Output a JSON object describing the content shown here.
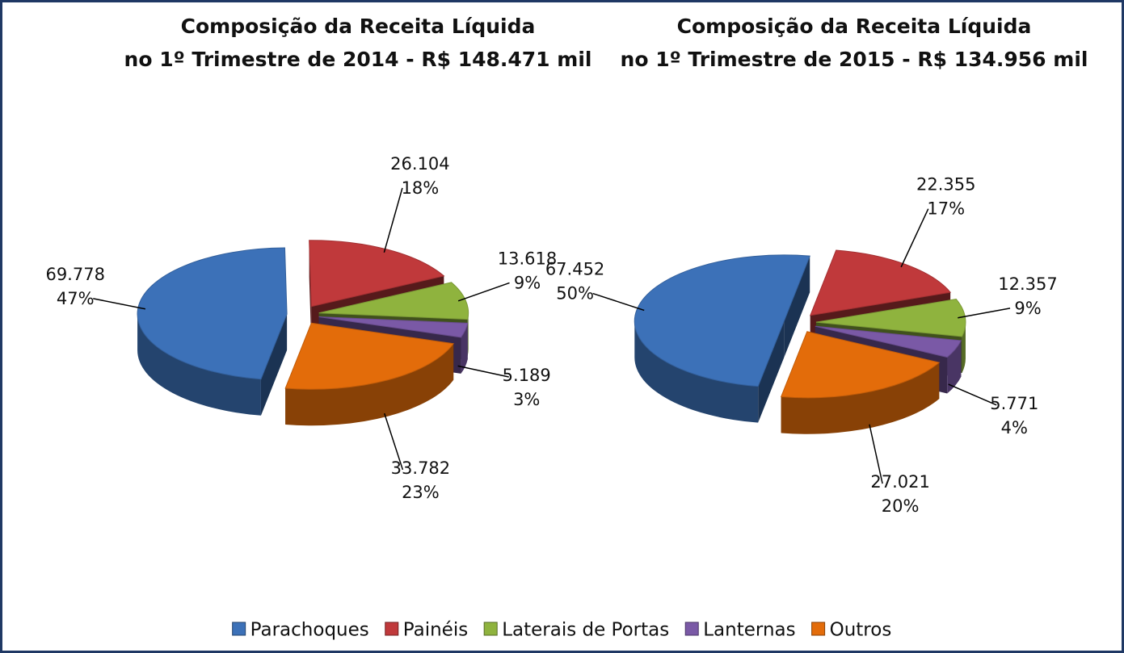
{
  "chart_data": [
    {
      "type": "pie3d",
      "title": [
        "Composição da Receita Líquida",
        "no 1º Trimestre de 2014 - R$ 148.471 mil"
      ],
      "values": [
        69778,
        26104,
        13618,
        5189,
        33782
      ],
      "value_labels": [
        "69.778",
        "26.104",
        "13.618",
        "5.189",
        "33.782"
      ],
      "percents": [
        47,
        18,
        9,
        3,
        23
      ],
      "percent_labels": [
        "47%",
        "18%",
        "9%",
        "3%",
        "23%"
      ]
    },
    {
      "type": "pie3d",
      "title": [
        "Composição da Receita Líquida",
        "no 1º Trimestre de 2015 - R$ 134.956 mil"
      ],
      "values": [
        67452,
        22355,
        12357,
        5771,
        27021
      ],
      "value_labels": [
        "67.452",
        "22.355",
        "12.357",
        "5.771",
        "27.021"
      ],
      "percents": [
        50,
        17,
        9,
        4,
        20
      ],
      "percent_labels": [
        "50%",
        "17%",
        "9%",
        "4%",
        "20%"
      ]
    }
  ],
  "legend": {
    "labels": [
      "Parachoques",
      "Painéis",
      "Laterais de Portas",
      "Lanternas",
      "Outros"
    ],
    "colors": [
      "#3c71b8",
      "#c0393b",
      "#8fb33e",
      "#7a59a6",
      "#e36c0a"
    ]
  }
}
